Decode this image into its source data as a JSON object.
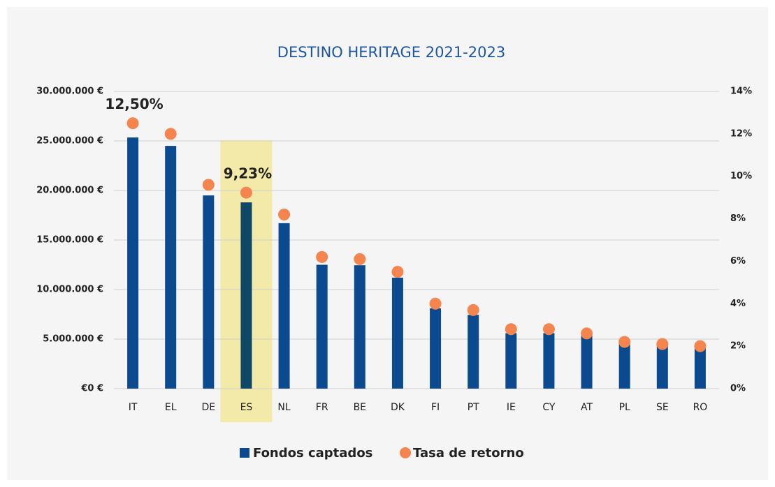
{
  "chart_data": {
    "type": "bar_dot",
    "title": "DESTINO HERITAGE 2021-2023",
    "categories": [
      "IT",
      "EL",
      "DE",
      "ES",
      "NL",
      "FR",
      "BE",
      "DK",
      "FI",
      "PT",
      "IE",
      "CY",
      "AT",
      "PL",
      "SE",
      "RO"
    ],
    "highlight": "ES",
    "highlight_color": "#0f4766",
    "highlight_band_color": "#f3eaaa",
    "series": [
      {
        "name": "Fondos captados",
        "color": "#0b4a8e",
        "values": [
          25350000,
          24500000,
          19500000,
          18800000,
          16700000,
          12500000,
          12450000,
          11200000,
          8100000,
          7450000,
          5600000,
          5600000,
          5400000,
          4600000,
          4400000,
          4300000
        ]
      },
      {
        "name": "Tasa de retorno",
        "color": "#f4854e",
        "axis": "y2",
        "values": [
          12.5,
          12.0,
          9.6,
          9.23,
          8.2,
          6.2,
          6.1,
          5.5,
          4.0,
          3.7,
          2.8,
          2.8,
          2.6,
          2.2,
          2.1,
          2.0
        ],
        "value_labels": [
          "12,50%",
          null,
          null,
          "9,23%",
          null,
          null,
          null,
          null,
          null,
          null,
          null,
          null,
          null,
          null,
          null,
          null
        ]
      }
    ],
    "ylim": [
      0,
      30000000
    ],
    "yticks": [
      {
        "value": 0,
        "label": "€0 €"
      },
      {
        "value": 5000000,
        "label": "5.000.000 €"
      },
      {
        "value": 10000000,
        "label": "10.000.000 €"
      },
      {
        "value": 15000000,
        "label": "15.000.000 €"
      },
      {
        "value": 20000000,
        "label": "20.000.000 €"
      },
      {
        "value": 25000000,
        "label": "25.000.000 €"
      },
      {
        "value": 30000000,
        "label": "30.000.000 €"
      }
    ],
    "y2lim": [
      0,
      14
    ],
    "y2ticks": [
      {
        "value": 0,
        "label": "0%"
      },
      {
        "value": 2,
        "label": "2%"
      },
      {
        "value": 4,
        "label": "4%"
      },
      {
        "value": 6,
        "label": "6%"
      },
      {
        "value": 8,
        "label": "8%"
      },
      {
        "value": 10,
        "label": "10%"
      },
      {
        "value": 12,
        "label": "12%"
      },
      {
        "value": 14,
        "label": "14%"
      }
    ],
    "grid": true,
    "legend": "bottom"
  }
}
